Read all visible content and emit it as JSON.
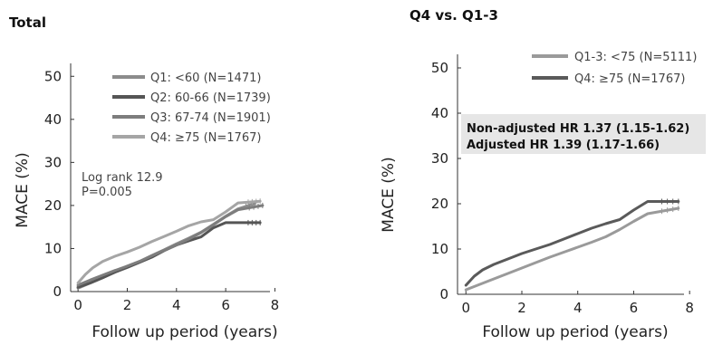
{
  "chart_data": [
    {
      "type": "line",
      "title": "Total",
      "xlabel": "Follow up period (years)",
      "ylabel": "MACE (%)",
      "xlim": [
        -0.3,
        7.8
      ],
      "ylim": [
        0,
        53
      ],
      "xticks": [
        0,
        2,
        4,
        6,
        8
      ],
      "yticks": [
        0,
        10,
        20,
        30,
        40,
        50
      ],
      "legend_position": "top-right",
      "annotation": [
        "Log rank 12.9",
        "P=0.005"
      ],
      "series": [
        {
          "name": "Q1: <60 (N=1471)",
          "color": "#8c8c8c",
          "x": [
            0,
            0.5,
            1,
            1.5,
            2,
            2.5,
            3,
            3.5,
            4,
            4.5,
            5,
            5.5,
            6,
            6.5,
            7.2
          ],
          "y": [
            0.8,
            2.0,
            3.2,
            4.6,
            5.9,
            7.0,
            8.4,
            9.7,
            11.1,
            12.4,
            13.8,
            15.6,
            17.5,
            19.2,
            20.5
          ]
        },
        {
          "name": "Q2: 60-66 (N=1739)",
          "color": "#555555",
          "x": [
            0,
            0.5,
            1,
            1.5,
            2,
            2.5,
            3,
            3.5,
            4,
            4.5,
            5,
            5.5,
            6,
            6.5,
            7.4
          ],
          "y": [
            1.0,
            2.0,
            3.2,
            4.5,
            5.6,
            6.8,
            8.0,
            9.5,
            10.8,
            11.8,
            12.7,
            14.8,
            16.0,
            16.0,
            16.0
          ]
        },
        {
          "name": "Q3: 67-74 (N=1901)",
          "color": "#7d7d7d",
          "x": [
            0,
            0.5,
            1,
            1.5,
            2,
            2.5,
            3,
            3.5,
            4,
            4.5,
            5,
            5.5,
            6,
            6.5,
            7.5
          ],
          "y": [
            1.5,
            2.7,
            3.8,
            4.9,
            5.9,
            7.0,
            8.3,
            9.6,
            10.8,
            12.2,
            13.7,
            15.5,
            17.4,
            19.0,
            20.0
          ]
        },
        {
          "name": "Q4: ≥75 (N=1767)",
          "color": "#a5a5a5",
          "x": [
            0,
            0.3,
            0.6,
            1,
            1.5,
            2,
            2.5,
            3,
            3.5,
            4,
            4.5,
            5,
            5.5,
            6,
            6.5,
            7.4
          ],
          "y": [
            2.0,
            4.0,
            5.5,
            7.0,
            8.2,
            9.2,
            10.3,
            11.6,
            12.8,
            14.0,
            15.3,
            16.2,
            16.7,
            18.5,
            20.6,
            21.0
          ]
        }
      ]
    },
    {
      "type": "line",
      "title": "Q4 vs. Q1-3",
      "xlabel": "Follow up period (years)",
      "ylabel": "MACE (%)",
      "xlim": [
        -0.3,
        7.8
      ],
      "ylim": [
        0,
        53
      ],
      "xticks": [
        0,
        2,
        4,
        6,
        8
      ],
      "yticks": [
        0,
        10,
        20,
        30,
        40,
        50
      ],
      "legend_position": "top-right",
      "annotation": [
        "Non-adjusted HR 1.37 (1.15-1.62)",
        "Adjusted HR 1.39 (1.17-1.66)"
      ],
      "series": [
        {
          "name": "Q1-3: <75 (N=5111)",
          "color": "#9a9a9a",
          "x": [
            0,
            0.5,
            1,
            1.5,
            2,
            2.5,
            3,
            3.5,
            4,
            4.5,
            5,
            5.5,
            6,
            6.5,
            7.6
          ],
          "y": [
            1.0,
            2.2,
            3.4,
            4.6,
            5.8,
            7.0,
            8.2,
            9.3,
            10.4,
            11.5,
            12.7,
            14.3,
            16.1,
            17.8,
            19.0
          ]
        },
        {
          "name": "Q4: ≥75 (N=1767)",
          "color": "#5a5a5a",
          "x": [
            0,
            0.3,
            0.6,
            1,
            1.5,
            2,
            2.5,
            3,
            3.5,
            4,
            4.5,
            5,
            5.5,
            6,
            6.5,
            7.6
          ],
          "y": [
            2.0,
            4.0,
            5.4,
            6.6,
            7.8,
            9.0,
            10.0,
            11.0,
            12.2,
            13.4,
            14.6,
            15.6,
            16.5,
            18.6,
            20.5,
            20.5
          ]
        }
      ]
    }
  ]
}
